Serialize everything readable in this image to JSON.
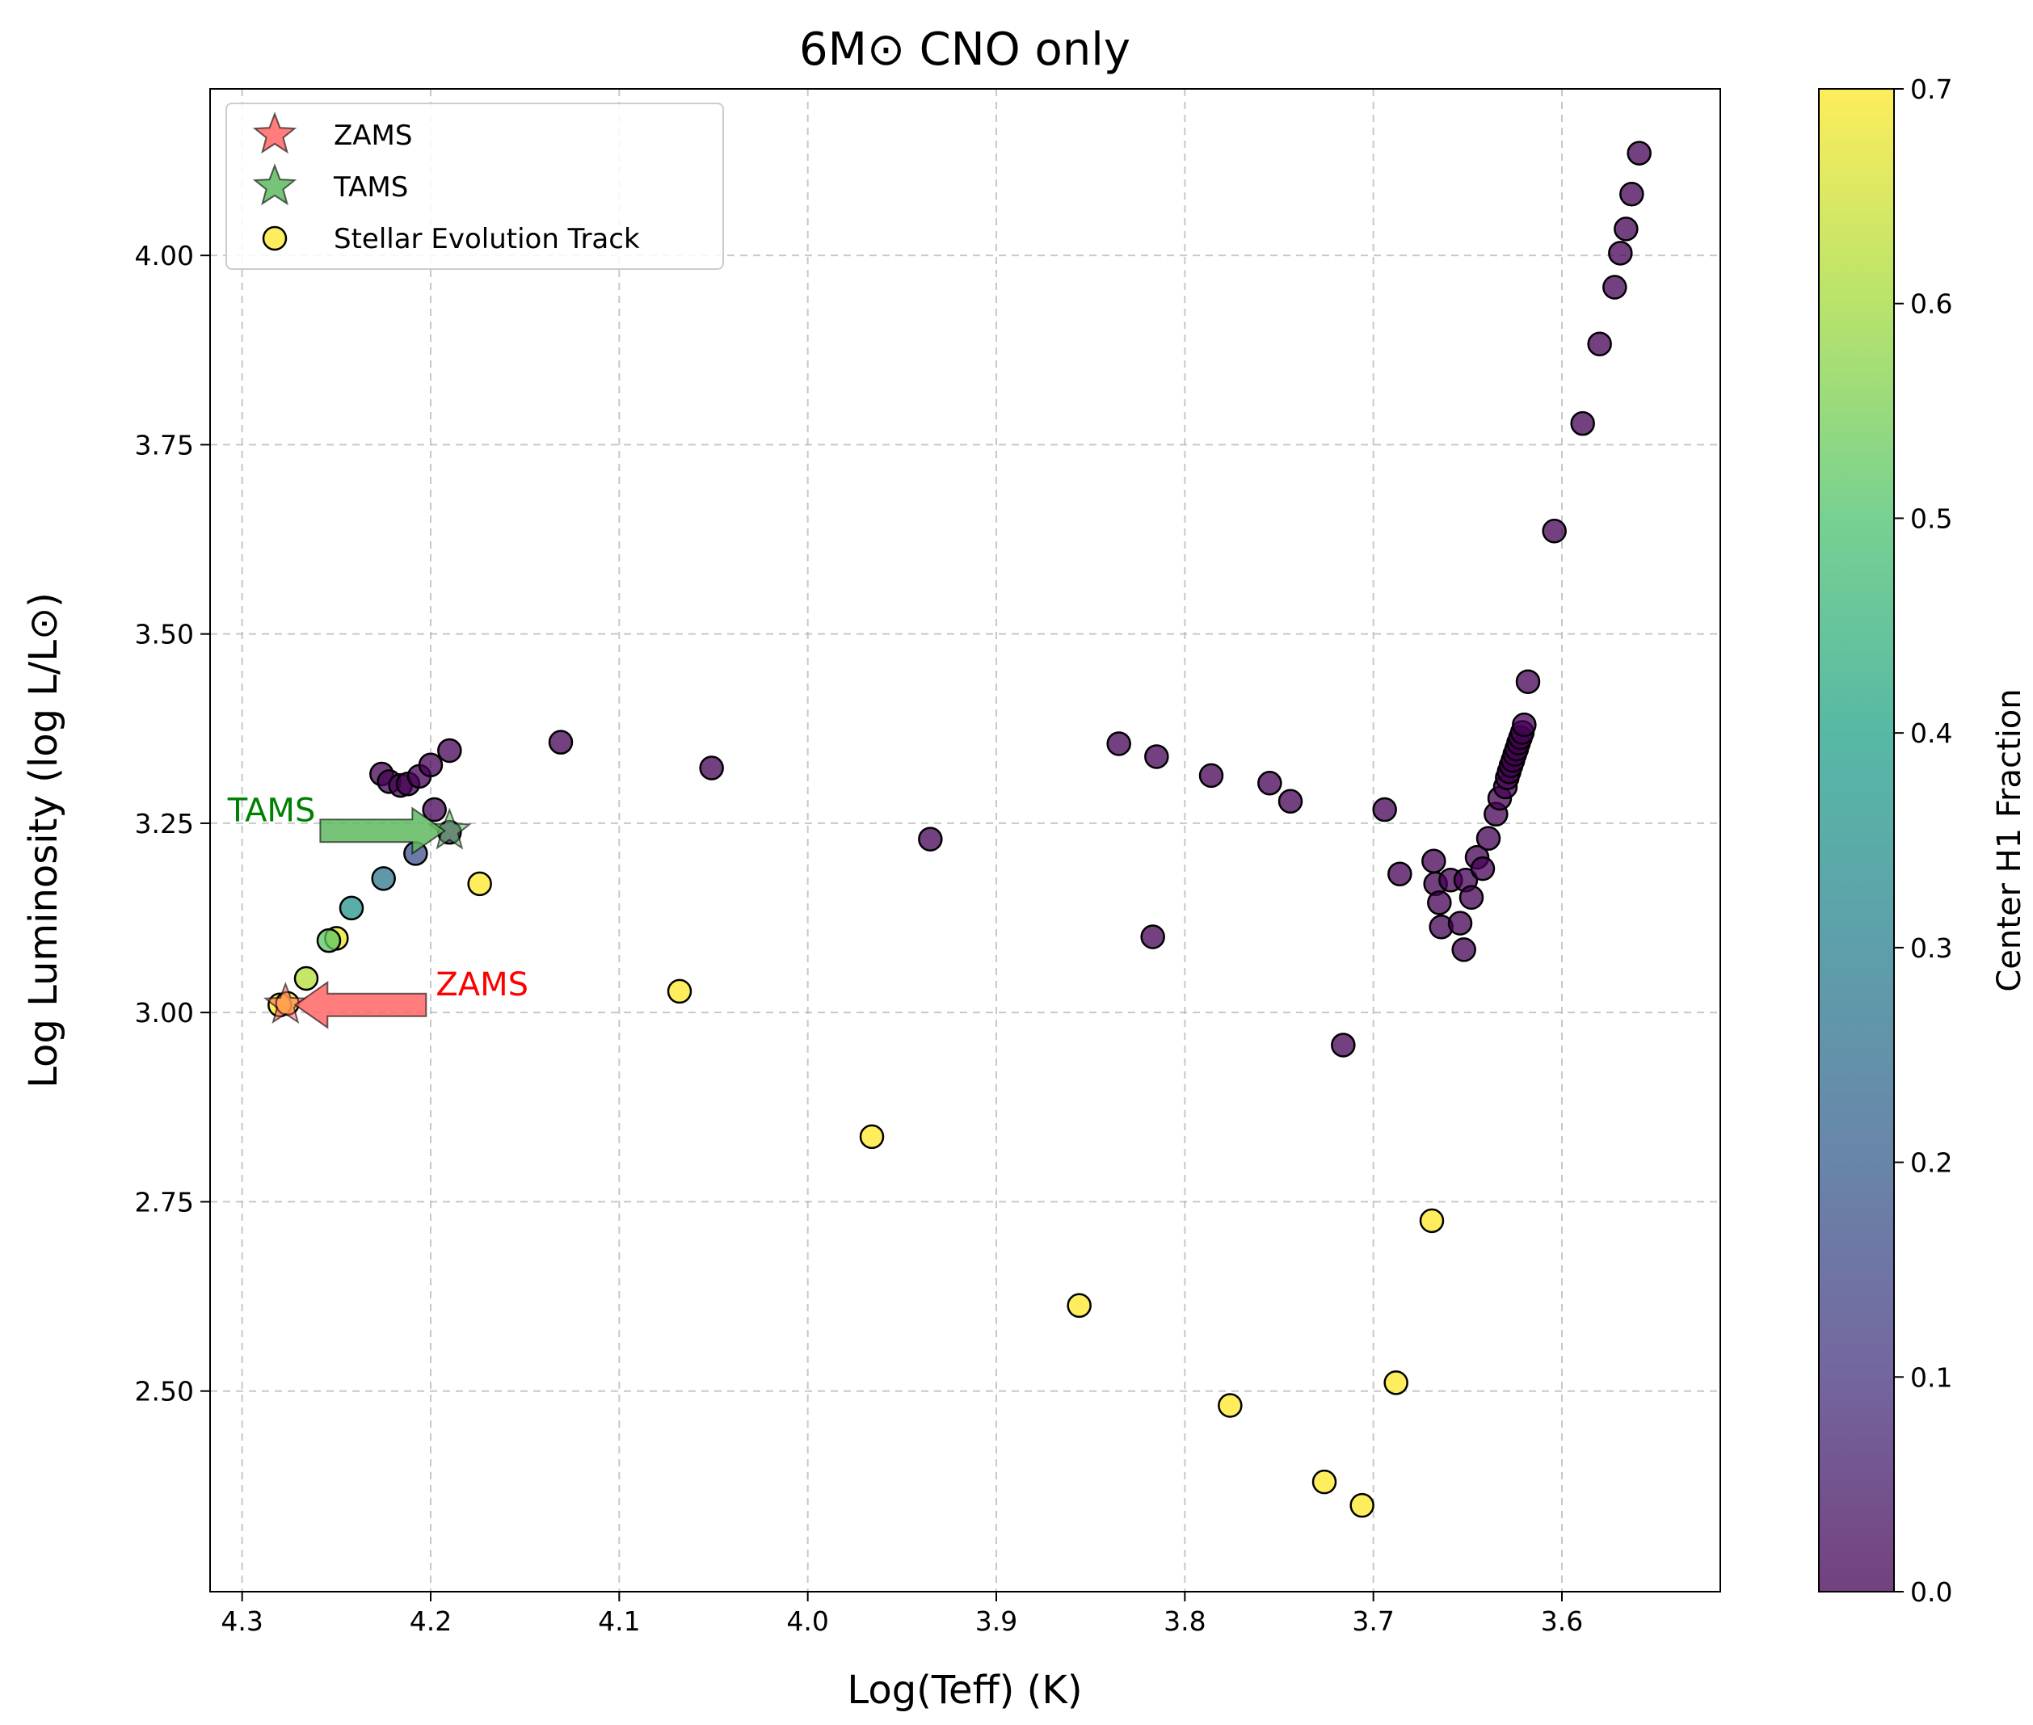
{
  "chart_data": {
    "type": "scatter",
    "title": "6M⊙ CNO only",
    "xlabel": "Log(Teff) (K)",
    "ylabel": "Log Luminosity (log L/L⊙)",
    "x_inverted": true,
    "xlim": [
      4.317,
      3.516
    ],
    "ylim": [
      2.235,
      4.22
    ],
    "xticks": [
      4.3,
      4.2,
      4.1,
      4.0,
      3.9,
      3.8,
      3.7,
      3.6
    ],
    "xtick_labels": [
      "4.3",
      "4.2",
      "4.1",
      "4.0",
      "3.9",
      "3.8",
      "3.7",
      "3.6"
    ],
    "yticks": [
      2.5,
      2.75,
      3.0,
      3.25,
      3.5,
      3.75,
      4.0
    ],
    "ytick_labels": [
      "2.50",
      "2.75",
      "3.00",
      "3.25",
      "3.50",
      "3.75",
      "4.00"
    ],
    "grid": true,
    "legend_position": "top-left",
    "legend": [
      {
        "label": "ZAMS",
        "marker": "star",
        "color": "#ff6666"
      },
      {
        "label": "TAMS",
        "marker": "star",
        "color": "#5fb85f"
      },
      {
        "label": "Stellar Evolution Track",
        "marker": "circle",
        "color": "#fde725"
      }
    ],
    "colorbar": {
      "label": "Center H1 Fraction",
      "colormap": "viridis",
      "range": [
        0.0,
        0.7
      ],
      "ticks": [
        0.0,
        0.1,
        0.2,
        0.3,
        0.4,
        0.5,
        0.6,
        0.7
      ],
      "tick_labels": [
        "0.0",
        "0.1",
        "0.2",
        "0.3",
        "0.4",
        "0.5",
        "0.6",
        "0.7"
      ]
    },
    "zams": {
      "x": 4.277,
      "y": 3.01,
      "label": "ZAMS",
      "color": "#ff0000"
    },
    "tams": {
      "x": 4.19,
      "y": 3.24,
      "label": "TAMS",
      "color": "#008000"
    },
    "points": [
      [
        4.28,
        3.01,
        0.7
      ],
      [
        4.276,
        3.012,
        0.7
      ],
      [
        4.266,
        3.045,
        0.62
      ],
      [
        4.25,
        3.098,
        0.68
      ],
      [
        4.254,
        3.095,
        0.52
      ],
      [
        4.242,
        3.138,
        0.36
      ],
      [
        4.225,
        3.177,
        0.27
      ],
      [
        4.208,
        3.21,
        0.17
      ],
      [
        4.19,
        3.238,
        0.06
      ],
      [
        4.174,
        3.17,
        0.7
      ],
      [
        4.198,
        3.268,
        0.0
      ],
      [
        4.226,
        3.315,
        0.0
      ],
      [
        4.222,
        3.305,
        0.0
      ],
      [
        4.216,
        3.3,
        0.0
      ],
      [
        4.212,
        3.302,
        0.0
      ],
      [
        4.206,
        3.312,
        0.0
      ],
      [
        4.2,
        3.327,
        0.0
      ],
      [
        4.19,
        3.346,
        0.0
      ],
      [
        4.131,
        3.357,
        0.0
      ],
      [
        4.051,
        3.323,
        0.0
      ],
      [
        4.068,
        3.028,
        0.7
      ],
      [
        3.966,
        2.836,
        0.7
      ],
      [
        3.935,
        3.229,
        0.0
      ],
      [
        3.856,
        2.613,
        0.7
      ],
      [
        3.835,
        3.355,
        0.0
      ],
      [
        3.815,
        3.338,
        0.0
      ],
      [
        3.817,
        3.1,
        0.0
      ],
      [
        3.786,
        3.313,
        0.0
      ],
      [
        3.776,
        2.481,
        0.7
      ],
      [
        3.755,
        3.303,
        0.0
      ],
      [
        3.744,
        3.279,
        0.0
      ],
      [
        3.726,
        2.38,
        0.7
      ],
      [
        3.716,
        2.957,
        0.0
      ],
      [
        3.706,
        2.349,
        0.7
      ],
      [
        3.694,
        3.268,
        0.0
      ],
      [
        3.686,
        3.183,
        0.0
      ],
      [
        3.688,
        2.511,
        0.7
      ],
      [
        3.669,
        2.725,
        0.7
      ],
      [
        3.668,
        3.2,
        0.0
      ],
      [
        3.667,
        3.17,
        0.0
      ],
      [
        3.665,
        3.145,
        0.0
      ],
      [
        3.664,
        3.113,
        0.0
      ],
      [
        3.659,
        3.175,
        0.0
      ],
      [
        3.654,
        3.118,
        0.0
      ],
      [
        3.652,
        3.083,
        0.0
      ],
      [
        3.651,
        3.175,
        0.0
      ],
      [
        3.648,
        3.152,
        0.0
      ],
      [
        3.645,
        3.205,
        0.0
      ],
      [
        3.642,
        3.19,
        0.0
      ],
      [
        3.639,
        3.23,
        0.0
      ],
      [
        3.635,
        3.262,
        0.0
      ],
      [
        3.633,
        3.283,
        0.0
      ],
      [
        3.63,
        3.298,
        0.0
      ],
      [
        3.629,
        3.31,
        0.0
      ],
      [
        3.628,
        3.318,
        0.0
      ],
      [
        3.627,
        3.326,
        0.0
      ],
      [
        3.626,
        3.333,
        0.0
      ],
      [
        3.625,
        3.341,
        0.0
      ],
      [
        3.624,
        3.348,
        0.0
      ],
      [
        3.623,
        3.356,
        0.0
      ],
      [
        3.622,
        3.363,
        0.0
      ],
      [
        3.621,
        3.37,
        0.0
      ],
      [
        3.62,
        3.38,
        0.0
      ],
      [
        3.618,
        3.437,
        0.0
      ],
      [
        3.604,
        3.636,
        0.0
      ],
      [
        3.589,
        3.778,
        0.0
      ],
      [
        3.58,
        3.883,
        0.0
      ],
      [
        3.572,
        3.958,
        0.0
      ],
      [
        3.569,
        4.003,
        0.0
      ],
      [
        3.566,
        4.035,
        0.0
      ],
      [
        3.563,
        4.081,
        0.0
      ],
      [
        3.559,
        4.135,
        0.0
      ]
    ]
  }
}
